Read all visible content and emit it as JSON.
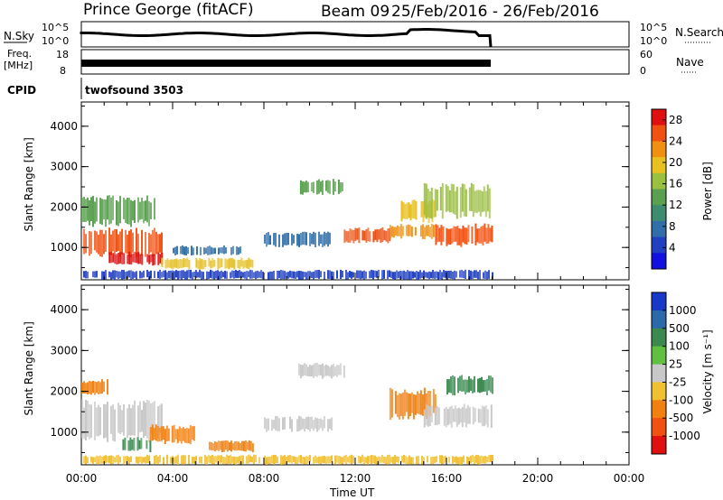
{
  "header": {
    "station": "Prince George (fitACF)",
    "beam": "Beam 09",
    "dates": "25/Feb/2016 - 26/Feb/2016",
    "cpid_label": "CPID",
    "cpid_value": "twofsound 3503",
    "nsky_label": "N.Sky",
    "nsky_top": "10^5",
    "nsky_bottom": "10^0",
    "freq_label_1": "Freq.",
    "freq_label_2": "[MHz]",
    "freq_top": "18",
    "freq_bottom": "8",
    "nsearch_label": "N.Search",
    "nsearch_top": "10^5",
    "nsearch_bottom": "10^0",
    "nave_label": "Nave",
    "nave_top": "60",
    "nave_bottom": "0"
  },
  "chart_data": [
    {
      "type": "heatmap",
      "title": "",
      "xlabel": "Time UT",
      "ylabel": "Slant Range [km]",
      "x_ticks": [
        "00:00",
        "04:00",
        "08:00",
        "12:00",
        "16:00",
        "20:00",
        "00:00"
      ],
      "y_ticks": [
        "1000",
        "2000",
        "3000",
        "4000"
      ],
      "ylim": [
        200,
        4600
      ],
      "xlim_hours": [
        0,
        24
      ],
      "colorbar": {
        "label": "Power [dB]",
        "ticks": [
          "4",
          "8",
          "12",
          "16",
          "20",
          "24",
          "28"
        ],
        "colors": [
          "#1010e0",
          "#2040c0",
          "#2f6ea8",
          "#3c8c70",
          "#5aa050",
          "#9ac040",
          "#e8c020",
          "#f09010",
          "#f05010",
          "#e01010"
        ],
        "range": [
          0,
          30
        ]
      },
      "echo_regions": [
        {
          "t0": 0.0,
          "t1": 3.5,
          "r0": 750,
          "r1": 1500,
          "value": 24
        },
        {
          "t0": 0.0,
          "t1": 3.2,
          "r0": 1500,
          "r1": 2300,
          "value": 12
        },
        {
          "t0": 1.2,
          "t1": 3.5,
          "r0": 550,
          "r1": 900,
          "value": 28
        },
        {
          "t0": 3.5,
          "t1": 7.5,
          "r0": 450,
          "r1": 750,
          "value": 18
        },
        {
          "t0": 4.0,
          "t1": 7.0,
          "r0": 800,
          "r1": 1050,
          "value": 6
        },
        {
          "t0": 8.0,
          "t1": 11.0,
          "r0": 1000,
          "r1": 1400,
          "value": 6
        },
        {
          "t0": 9.5,
          "t1": 11.5,
          "r0": 2300,
          "r1": 2700,
          "value": 14
        },
        {
          "t0": 11.5,
          "t1": 13.5,
          "r0": 1100,
          "r1": 1500,
          "value": 24
        },
        {
          "t0": 13.5,
          "t1": 15.5,
          "r0": 1200,
          "r1": 1600,
          "value": 22
        },
        {
          "t0": 14.0,
          "t1": 15.5,
          "r0": 1600,
          "r1": 2200,
          "value": 18
        },
        {
          "t0": 15.5,
          "t1": 18.0,
          "r0": 1000,
          "r1": 1600,
          "value": 24
        },
        {
          "t0": 15.0,
          "t1": 18.0,
          "r0": 1700,
          "r1": 2600,
          "value": 16
        },
        {
          "t0": 0.0,
          "t1": 18.0,
          "r0": 200,
          "r1": 450,
          "value": 5
        }
      ]
    },
    {
      "type": "heatmap",
      "title": "",
      "xlabel": "Time UT",
      "ylabel": "Slant Range [km]",
      "x_ticks": [
        "00:00",
        "04:00",
        "08:00",
        "12:00",
        "16:00",
        "20:00",
        "00:00"
      ],
      "y_ticks": [
        "1000",
        "2000",
        "3000",
        "4000"
      ],
      "ylim": [
        200,
        4600
      ],
      "xlim_hours": [
        0,
        24
      ],
      "colorbar": {
        "label": "Velocity [m s⁻¹]",
        "ticks": [
          "1000",
          "500",
          "100",
          "25",
          "-25",
          "-100",
          "-500",
          "-1000"
        ],
        "colors": [
          "#1838c8",
          "#2b6aa8",
          "#3a8a50",
          "#60c040",
          "#c8c8c8",
          "#f0c030",
          "#f08010",
          "#f05010",
          "#e01010"
        ],
        "range": [
          -1000,
          1000
        ]
      },
      "echo_regions": [
        {
          "t0": 0.0,
          "t1": 3.5,
          "r0": 750,
          "r1": 1800,
          "value": 0
        },
        {
          "t0": 0.0,
          "t1": 1.2,
          "r0": 1900,
          "r1": 2300,
          "value": -300
        },
        {
          "t0": 1.8,
          "t1": 3.0,
          "r0": 500,
          "r1": 900,
          "value": 150
        },
        {
          "t0": 3.0,
          "t1": 5.0,
          "r0": 700,
          "r1": 1200,
          "value": -200
        },
        {
          "t0": 5.5,
          "t1": 7.5,
          "r0": 500,
          "r1": 800,
          "value": -350
        },
        {
          "t0": 8.0,
          "t1": 11.0,
          "r0": 1000,
          "r1": 1400,
          "value": 0
        },
        {
          "t0": 9.5,
          "t1": 11.5,
          "r0": 2300,
          "r1": 2700,
          "value": 0
        },
        {
          "t0": 13.5,
          "t1": 15.5,
          "r0": 1300,
          "r1": 2100,
          "value": -150
        },
        {
          "t0": 15.0,
          "t1": 18.0,
          "r0": 1100,
          "r1": 1700,
          "value": 0
        },
        {
          "t0": 16.0,
          "t1": 18.0,
          "r0": 1900,
          "r1": 2400,
          "value": 150
        },
        {
          "t0": 0.0,
          "t1": 18.0,
          "r0": 200,
          "r1": 450,
          "value": -60
        }
      ]
    }
  ]
}
